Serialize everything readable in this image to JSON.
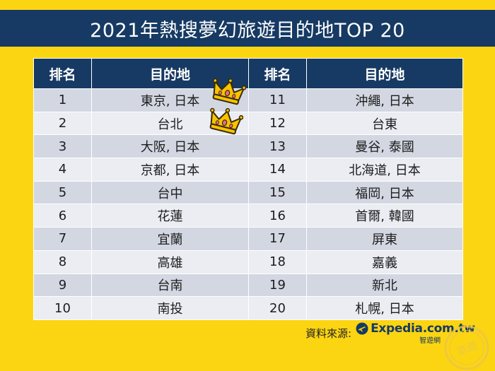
{
  "title": "2021年熱搜夢幻旅遊目的地TOP 20",
  "table": {
    "headers": [
      "排名",
      "目的地",
      "排名",
      "目的地"
    ],
    "rows": [
      {
        "rank_a": "1",
        "dest_a": "東京, 日本",
        "rank_b": "11",
        "dest_b": "沖繩, 日本"
      },
      {
        "rank_a": "2",
        "dest_a": "台北",
        "rank_b": "12",
        "dest_b": "台東"
      },
      {
        "rank_a": "3",
        "dest_a": "大阪, 日本",
        "rank_b": "13",
        "dest_b": "曼谷, 泰國"
      },
      {
        "rank_a": "4",
        "dest_a": "京都, 日本",
        "rank_b": "14",
        "dest_b": "北海道, 日本"
      },
      {
        "rank_a": "5",
        "dest_a": "台中",
        "rank_b": "15",
        "dest_b": "福岡, 日本"
      },
      {
        "rank_a": "6",
        "dest_a": "花蓮",
        "rank_b": "16",
        "dest_b": "首爾, 韓國"
      },
      {
        "rank_a": "7",
        "dest_a": "宜蘭",
        "rank_b": "17",
        "dest_b": "屏東"
      },
      {
        "rank_a": "8",
        "dest_a": "高雄",
        "rank_b": "18",
        "dest_b": "嘉義"
      },
      {
        "rank_a": "9",
        "dest_a": "台南",
        "rank_b": "19",
        "dest_b": "新北"
      },
      {
        "rank_a": "10",
        "dest_a": "南投",
        "rank_b": "20",
        "dest_b": "札幌, 日本"
      }
    ]
  },
  "source": {
    "label": "資料來源:",
    "brand": "Expedia.com.tw",
    "brand_sub": "智遊網"
  },
  "stamp_text": "旅遊",
  "colors": {
    "background": "#fcd512",
    "header": "#163a63",
    "row_dark": "#d3d7e2",
    "row_light": "#ebedf3",
    "crown": "#f6c400"
  },
  "icons": [
    "crown-icon",
    "crown-icon",
    "expedia-plane-icon",
    "watermark-stamp-icon"
  ]
}
